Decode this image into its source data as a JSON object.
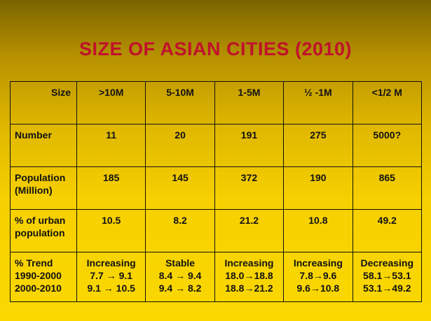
{
  "title": "SIZE OF ASIAN CITIES (2010)",
  "table": {
    "header": [
      "Size",
      ">10M",
      "5-10M",
      "1-5M",
      "½ -1M",
      "<1/2 M"
    ],
    "rows": [
      {
        "label": [
          "Number"
        ],
        "cells": [
          "11",
          "20",
          "191",
          "275",
          "5000?"
        ]
      },
      {
        "label": [
          "Population",
          "(Million)"
        ],
        "cells": [
          "185",
          "145",
          "372",
          "190",
          "865"
        ]
      },
      {
        "label": [
          "% of urban",
          "population"
        ],
        "cells": [
          "10.5",
          "8.2",
          "21.2",
          "10.8",
          "49.2"
        ]
      }
    ],
    "trend": {
      "label": [
        "% Trend",
        "1990-2000",
        "2000-2010"
      ],
      "cells": [
        [
          "Increasing",
          "7.7 → 9.1",
          "9.1 → 10.5"
        ],
        [
          "Stable",
          "8.4 → 9.4",
          "9.4 → 8.2"
        ],
        [
          "Increasing",
          "18.0→18.8",
          "18.8→21.2"
        ],
        [
          "Increasing",
          "7.8→9.6",
          "9.6→10.8"
        ],
        [
          "Decreasing",
          "58.1→53.1",
          "53.1→49.2"
        ]
      ]
    }
  }
}
